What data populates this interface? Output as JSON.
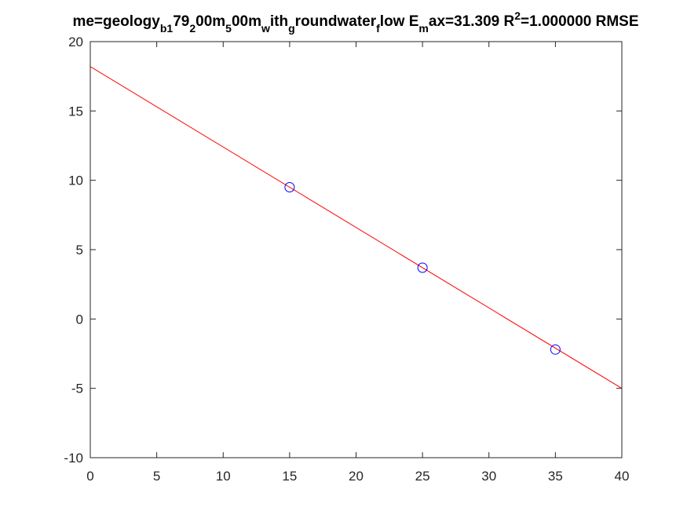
{
  "chart_data": {
    "type": "scatter",
    "title": {
      "segments": [
        {
          "text": "me=geology",
          "sub": false,
          "sup": false
        },
        {
          "text": "b1",
          "sub": true,
          "sup": false
        },
        {
          "text": "79",
          "sub": false,
          "sup": false
        },
        {
          "text": "2",
          "sub": true,
          "sup": false
        },
        {
          "text": "00m",
          "sub": false,
          "sup": false
        },
        {
          "text": "5",
          "sub": true,
          "sup": false
        },
        {
          "text": "00m",
          "sub": false,
          "sup": false
        },
        {
          "text": "w",
          "sub": true,
          "sup": false
        },
        {
          "text": "ith",
          "sub": false,
          "sup": false
        },
        {
          "text": "g",
          "sub": true,
          "sup": false
        },
        {
          "text": "roundwater",
          "sub": false,
          "sup": false
        },
        {
          "text": "f",
          "sub": true,
          "sup": false
        },
        {
          "text": "low E",
          "sub": false,
          "sup": false
        },
        {
          "text": "m",
          "sub": true,
          "sup": false
        },
        {
          "text": "ax=31.309 R",
          "sub": false,
          "sup": false
        },
        {
          "text": "2",
          "sub": false,
          "sup": true
        },
        {
          "text": "=1.000000 RMSE",
          "sub": false,
          "sup": false
        }
      ]
    },
    "xlim": [
      0,
      40
    ],
    "ylim": [
      -10,
      20
    ],
    "xticks": [
      0,
      5,
      10,
      15,
      20,
      25,
      30,
      35,
      40
    ],
    "yticks": [
      -10,
      -5,
      0,
      5,
      10,
      15,
      20
    ],
    "xtick_labels": [
      "0",
      "5",
      "10",
      "15",
      "20",
      "25",
      "30",
      "35",
      "40"
    ],
    "ytick_labels": [
      "-10",
      "-5",
      "0",
      "5",
      "10",
      "15",
      "20"
    ],
    "grid": false,
    "series": [
      {
        "kind": "points",
        "marker": "circle",
        "color": "#0000ff",
        "x": [
          15,
          25,
          35
        ],
        "y": [
          9.5,
          3.7,
          -2.2
        ]
      },
      {
        "kind": "line",
        "color": "#ff0000",
        "x": [
          0,
          40
        ],
        "y": [
          18.2,
          -5.0
        ]
      }
    ]
  }
}
